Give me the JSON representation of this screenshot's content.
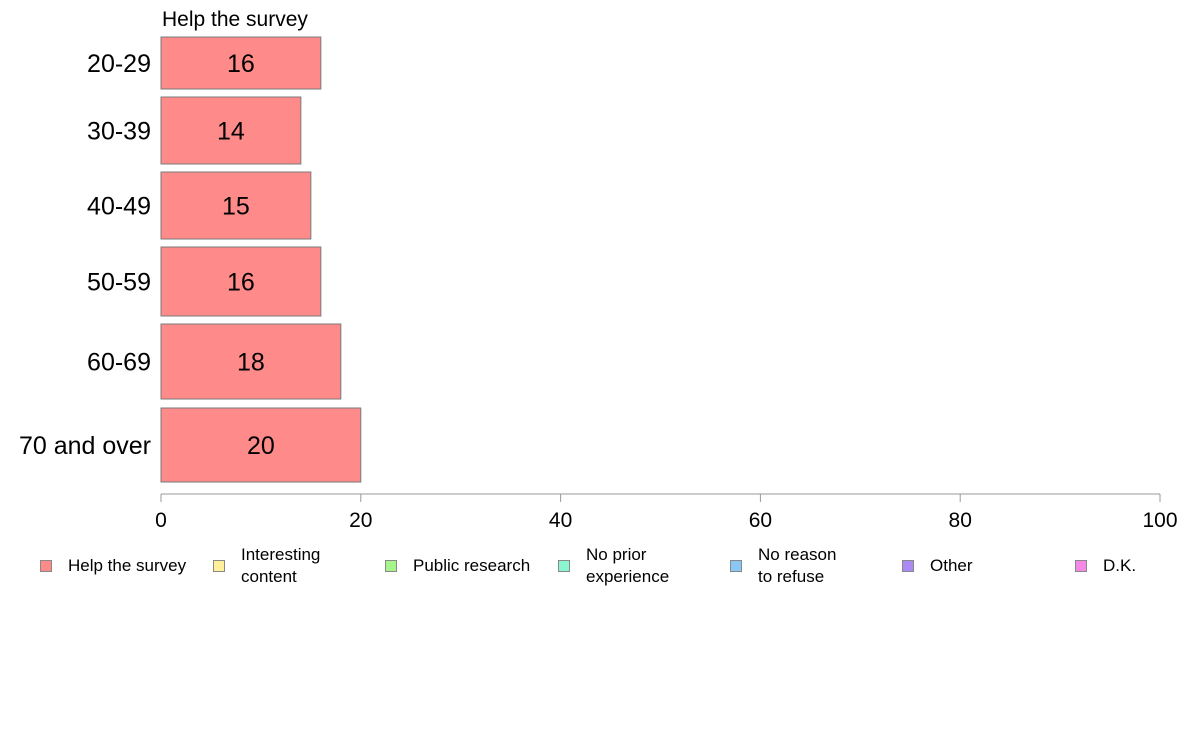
{
  "chart_data": {
    "type": "bar",
    "orientation": "horizontal",
    "panel_title": "Help the survey",
    "categories": [
      "20-29",
      "30-39",
      "40-49",
      "50-59",
      "60-69",
      "70 and over"
    ],
    "series": [
      {
        "name": "Help the survey",
        "values": [
          16,
          14,
          15,
          16,
          18,
          20
        ]
      }
    ],
    "data_labels": [
      "16",
      "14",
      "15",
      "16",
      "18",
      "20"
    ],
    "xlim": [
      0,
      100
    ],
    "xticks": [
      0,
      20,
      40,
      60,
      80,
      100
    ],
    "grid": false,
    "legend_position": "bottom",
    "legend": [
      {
        "label": "Help the survey",
        "color": "#ff8a8a"
      },
      {
        "label": "Interesting\ncontent",
        "color": "#fff099"
      },
      {
        "label": "Public research",
        "color": "#a6f58a"
      },
      {
        "label": "No prior\nexperience",
        "color": "#8af5cf"
      },
      {
        "label": "No reason\nto refuse",
        "color": "#8ac7f5"
      },
      {
        "label": "Other",
        "color": "#ac8af5"
      },
      {
        "label": "D.K.",
        "color": "#f58ae6"
      }
    ],
    "bar_color": "#ff8a8a",
    "bar_border": "#7a7a7a"
  }
}
